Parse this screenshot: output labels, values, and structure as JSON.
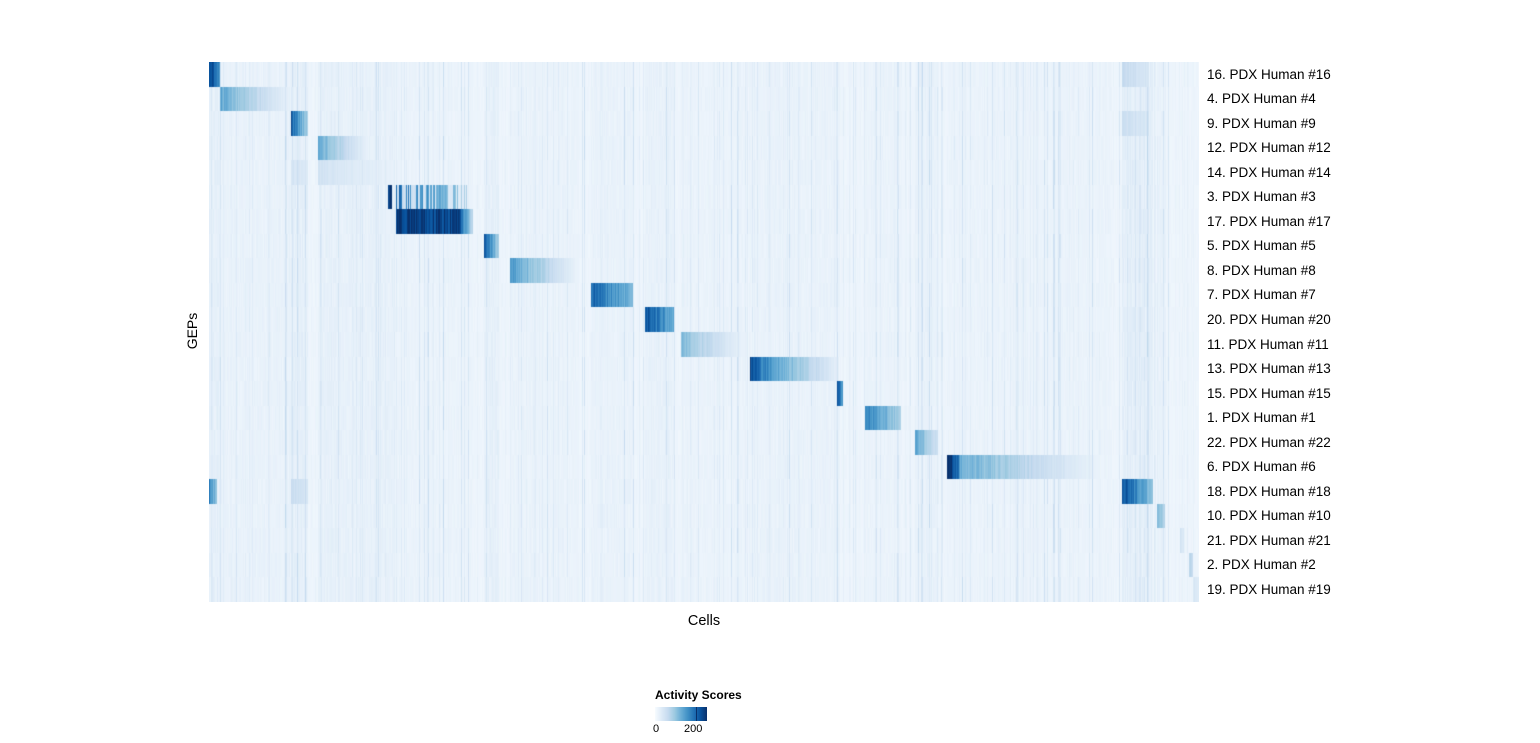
{
  "chart_data": {
    "type": "heatmap",
    "title": "",
    "xlabel": "Cells",
    "ylabel": "GEPs",
    "colorbar": {
      "title": "Activity Scores",
      "min": 0,
      "max": 200,
      "min_label": "0",
      "max_label": "200",
      "max_label_position": 0.79
    },
    "colormap": [
      "#f7fbff",
      "#deebf7",
      "#c6dbef",
      "#9ecae1",
      "#6baed6",
      "#4292c6",
      "#2171b5",
      "#08519c",
      "#08306b"
    ],
    "value_scale_max": 250,
    "plot_background": "#eef4fa",
    "rows": [
      {
        "label": "16. PDX Human #16",
        "blocks": [
          {
            "x0": 0.0,
            "x1": 0.011,
            "v0": 235,
            "v1": 150
          },
          {
            "x0": 0.922,
            "x1": 0.948,
            "v0": 62,
            "v1": 42
          }
        ]
      },
      {
        "label": "4. PDX Human #4",
        "blocks": [
          {
            "x0": 0.011,
            "x1": 0.084,
            "v0": 135,
            "v1": 14
          }
        ]
      },
      {
        "label": "9. PDX Human #9",
        "blocks": [
          {
            "x0": 0.082,
            "x1": 0.1,
            "v0": 215,
            "v1": 80
          },
          {
            "x0": 0.922,
            "x1": 0.948,
            "v0": 55,
            "v1": 38
          }
        ]
      },
      {
        "label": "12. PDX Human #12",
        "blocks": [
          {
            "x0": 0.11,
            "x1": 0.161,
            "v0": 132,
            "v1": 16
          }
        ]
      },
      {
        "label": "14. PDX Human #14",
        "blocks": [
          {
            "x0": 0.082,
            "x1": 0.1,
            "v0": 45,
            "v1": 32
          },
          {
            "x0": 0.11,
            "x1": 0.186,
            "v0": 48,
            "v1": 18
          }
        ]
      },
      {
        "label": "3. PDX Human #3",
        "blocks": [
          {
            "x0": 0.18,
            "x1": 0.184,
            "v0": 238,
            "v1": 230
          },
          {
            "x0": 0.188,
            "x1": 0.26,
            "v0": 205,
            "v1": 85,
            "striped": true
          }
        ]
      },
      {
        "label": "17. PDX Human #17",
        "blocks": [
          {
            "x0": 0.188,
            "x1": 0.252,
            "v0": 242,
            "v1": 228
          },
          {
            "x0": 0.252,
            "x1": 0.266,
            "v0": 225,
            "v1": 65
          }
        ]
      },
      {
        "label": "5. PDX Human #5",
        "blocks": [
          {
            "x0": 0.277,
            "x1": 0.292,
            "v0": 222,
            "v1": 88
          }
        ]
      },
      {
        "label": "8. PDX Human #8",
        "blocks": [
          {
            "x0": 0.304,
            "x1": 0.373,
            "v0": 152,
            "v1": 14
          }
        ]
      },
      {
        "label": "7. PDX Human #7",
        "blocks": [
          {
            "x0": 0.385,
            "x1": 0.428,
            "v0": 205,
            "v1": 115
          }
        ]
      },
      {
        "label": "20. PDX Human #20",
        "blocks": [
          {
            "x0": 0.44,
            "x1": 0.469,
            "v0": 228,
            "v1": 125
          }
        ]
      },
      {
        "label": "11. PDX Human #11",
        "blocks": [
          {
            "x0": 0.476,
            "x1": 0.543,
            "v0": 112,
            "v1": 12
          }
        ]
      },
      {
        "label": "13. PDX Human #13",
        "blocks": [
          {
            "x0": 0.546,
            "x1": 0.56,
            "v0": 232,
            "v1": 168
          },
          {
            "x0": 0.56,
            "x1": 0.636,
            "v0": 168,
            "v1": 22
          }
        ]
      },
      {
        "label": "15. PDX Human #15",
        "blocks": [
          {
            "x0": 0.634,
            "x1": 0.64,
            "v0": 205,
            "v1": 150
          }
        ]
      },
      {
        "label": "1. PDX Human #1",
        "blocks": [
          {
            "x0": 0.662,
            "x1": 0.698,
            "v0": 182,
            "v1": 85
          }
        ]
      },
      {
        "label": "22. PDX Human #22",
        "blocks": [
          {
            "x0": 0.713,
            "x1": 0.736,
            "v0": 142,
            "v1": 48
          }
        ]
      },
      {
        "label": "6. PDX Human #6",
        "blocks": [
          {
            "x0": 0.745,
            "x1": 0.757,
            "v0": 242,
            "v1": 200
          },
          {
            "x0": 0.757,
            "x1": 0.91,
            "v0": 132,
            "v1": 8
          }
        ]
      },
      {
        "label": "18. PDX Human #18",
        "blocks": [
          {
            "x0": 0.0,
            "x1": 0.008,
            "v0": 165,
            "v1": 100
          },
          {
            "x0": 0.082,
            "x1": 0.1,
            "v0": 60,
            "v1": 38
          },
          {
            "x0": 0.922,
            "x1": 0.953,
            "v0": 228,
            "v1": 105
          }
        ]
      },
      {
        "label": "10. PDX Human #10",
        "blocks": [
          {
            "x0": 0.957,
            "x1": 0.965,
            "v0": 128,
            "v1": 75
          }
        ]
      },
      {
        "label": "21. PDX Human #21",
        "blocks": [
          {
            "x0": 0.98,
            "x1": 0.984,
            "v0": 48,
            "v1": 38
          }
        ]
      },
      {
        "label": "2. PDX Human #2",
        "blocks": [
          {
            "x0": 0.989,
            "x1": 0.993,
            "v0": 88,
            "v1": 58
          }
        ]
      },
      {
        "label": "19. PDX Human #19",
        "blocks": [
          {
            "x0": 0.993,
            "x1": 1.0,
            "v0": 42,
            "v1": 28
          }
        ]
      }
    ],
    "noise_bands": [
      {
        "x0": 0.0,
        "x1": 0.011,
        "s": 14
      },
      {
        "x0": 0.011,
        "x1": 0.084,
        "s": 8
      },
      {
        "x0": 0.082,
        "x1": 0.1,
        "s": 16
      },
      {
        "x0": 0.11,
        "x1": 0.186,
        "s": 12
      },
      {
        "x0": 0.186,
        "x1": 0.266,
        "s": 5
      },
      {
        "x0": 0.277,
        "x1": 0.292,
        "s": 14
      },
      {
        "x0": 0.304,
        "x1": 0.373,
        "s": 6
      },
      {
        "x0": 0.385,
        "x1": 0.428,
        "s": 8
      },
      {
        "x0": 0.44,
        "x1": 0.47,
        "s": 10
      },
      {
        "x0": 0.476,
        "x1": 0.543,
        "s": 5
      },
      {
        "x0": 0.546,
        "x1": 0.636,
        "s": 7
      },
      {
        "x0": 0.662,
        "x1": 0.7,
        "s": 6
      },
      {
        "x0": 0.713,
        "x1": 0.737,
        "s": 9
      },
      {
        "x0": 0.745,
        "x1": 0.912,
        "s": 5
      },
      {
        "x0": 0.922,
        "x1": 0.953,
        "s": 18
      },
      {
        "x0": 0.957,
        "x1": 0.965,
        "s": 10
      }
    ]
  }
}
